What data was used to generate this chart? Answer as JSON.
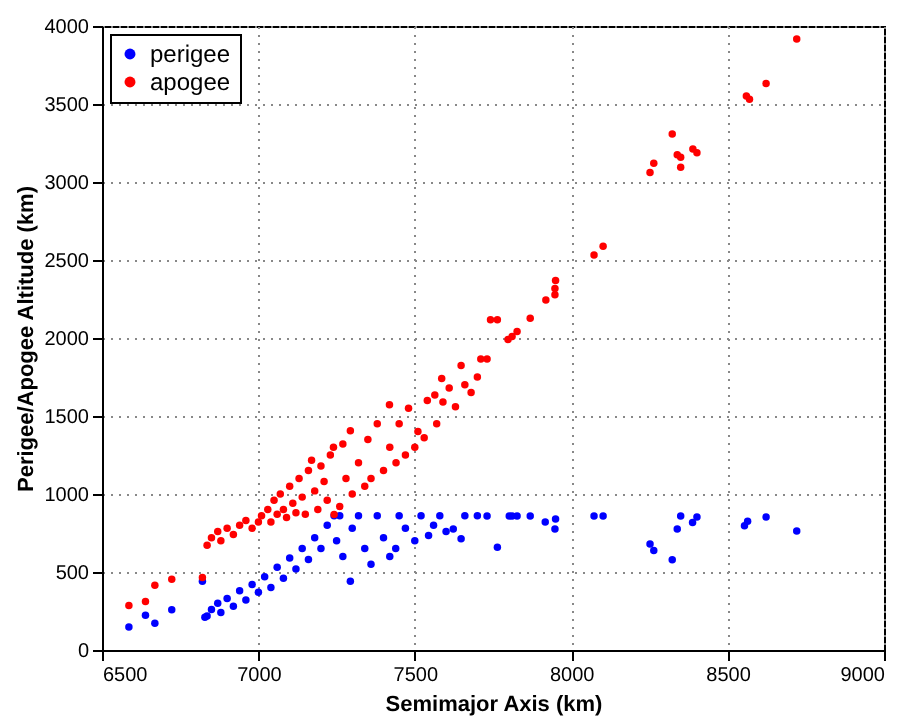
{
  "chart_data": {
    "type": "scatter",
    "xlabel": "Semimajor Axis (km)",
    "ylabel": "Perigee/Apogee Altitude (km)",
    "xlim": [
      6500,
      9000
    ],
    "xticks": [
      6500,
      7000,
      7500,
      8000,
      8500,
      9000
    ],
    "ylim": [
      0,
      4000
    ],
    "yticks": [
      0,
      500,
      1000,
      1500,
      2000,
      2500,
      3000,
      3500,
      4000
    ],
    "grid": true,
    "legend": "top left",
    "marker": "circle",
    "series": [
      {
        "name": "perigee",
        "color": "#0000ff",
        "x": [
          6586,
          6639,
          6669,
          6723,
          6821,
          6829,
          6836,
          6850,
          6870,
          6880,
          6900,
          6920,
          6940,
          6960,
          6980,
          7000,
          7020,
          7040,
          7060,
          7080,
          7100,
          7120,
          7140,
          7160,
          7180,
          7200,
          7220,
          7242,
          7250,
          7260,
          7270,
          7294,
          7300,
          7320,
          7340,
          7360,
          7380,
          7400,
          7420,
          7439,
          7450,
          7470,
          7500,
          7520,
          7544,
          7560,
          7580,
          7600,
          7623,
          7648,
          7660,
          7700,
          7731,
          7764,
          7802,
          7811,
          7827,
          7869,
          7917,
          7948,
          7950,
          8073,
          8102,
          8252,
          8264,
          8323,
          8339,
          8350,
          8388,
          8402,
          8554,
          8564,
          8623,
          8721
        ],
        "values": [
          147,
          223,
          172,
          258,
          440,
          210,
          218,
          260,
          300,
          240,
          330,
          280,
          380,
          320,
          420,
          370,
          470,
          400,
          530,
          460,
          590,
          520,
          650,
          580,
          720,
          650,
          800,
          860,
          700,
          860,
          600,
          440,
          780,
          860,
          650,
          550,
          860,
          720,
          600,
          650,
          860,
          780,
          700,
          860,
          734,
          800,
          860,
          760,
          776,
          713,
          860,
          860,
          859,
          658,
          859,
          859,
          859,
          859,
          820,
          776,
          840,
          859,
          859,
          679,
          638,
          579,
          776,
          859,
          818,
          852,
          796,
          826,
          852,
          763
        ]
      },
      {
        "name": "apogee",
        "color": "#ff0000",
        "x": [
          6586,
          6639,
          6669,
          6723,
          6821,
          6836,
          6850,
          6870,
          6880,
          6900,
          6920,
          6940,
          6960,
          6980,
          7000,
          7010,
          7030,
          7040,
          7050,
          7060,
          7070,
          7080,
          7090,
          7100,
          7110,
          7120,
          7130,
          7140,
          7150,
          7160,
          7170,
          7180,
          7190,
          7200,
          7210,
          7220,
          7230,
          7240,
          7242,
          7260,
          7270,
          7280,
          7294,
          7300,
          7320,
          7340,
          7350,
          7360,
          7380,
          7400,
          7419,
          7420,
          7440,
          7450,
          7470,
          7480,
          7500,
          7510,
          7530,
          7540,
          7564,
          7570,
          7586,
          7590,
          7610,
          7630,
          7648,
          7660,
          7680,
          7700,
          7711,
          7731,
          7742,
          7764,
          7798,
          7811,
          7827,
          7869,
          7919,
          7948,
          7948,
          7950,
          8073,
          8102,
          8252,
          8264,
          8323,
          8339,
          8350,
          8350,
          8389,
          8402,
          8560,
          8570,
          8623,
          8721
        ],
        "values": [
          286,
          311,
          415,
          453,
          465,
          671,
          720,
          760,
          700,
          780,
          740,
          800,
          830,
          780,
          820,
          860,
          900,
          820,
          960,
          870,
          1000,
          900,
          850,
          1050,
          940,
          880,
          1100,
          980,
          870,
          1150,
          1216,
          1020,
          900,
          1180,
          1080,
          960,
          1250,
          1300,
          868,
          920,
          1320,
          1100,
          1405,
          1000,
          1200,
          1050,
          1350,
          1100,
          1450,
          1150,
          1572,
          1300,
          1200,
          1450,
          1250,
          1550,
          1300,
          1400,
          1360,
          1600,
          1635,
          1450,
          1740,
          1590,
          1680,
          1560,
          1824,
          1700,
          1650,
          1750,
          1866,
          1866,
          2117,
          2117,
          1991,
          2009,
          2042,
          2126,
          2243,
          2277,
          2318,
          2369,
          2532,
          2588,
          3061,
          3120,
          3308,
          3174,
          3158,
          3095,
          3211,
          3187,
          3551,
          3530,
          3632,
          3916
        ]
      }
    ]
  }
}
